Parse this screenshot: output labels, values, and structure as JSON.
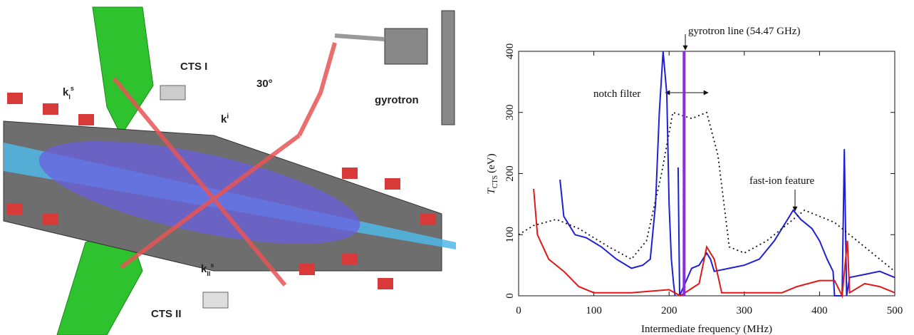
{
  "illustration": {
    "labels": [
      "CTS I",
      "30°",
      "k",
      "i",
      "k",
      "I",
      "s",
      "gyrotron",
      "k",
      "II",
      "s",
      "CTS II"
    ]
  },
  "chart_data": {
    "type": "line",
    "y_label": "T",
    "y_label_sub": "CTS",
    "y_label_unit": "(eV)",
    "x_label": "Intermediate frequency (MHz)",
    "annotations": [
      "gyrotron line (54.47 GHz)",
      "notch filter",
      "fast-ion feature"
    ],
    "gyrotron_line_x": 220,
    "gyrotron_line_color": "#8a2be2",
    "xlim": [
      0,
      500
    ],
    "xticks": [
      0,
      100,
      200,
      300,
      400,
      500
    ],
    "ylim": [
      0,
      400
    ],
    "yticks": [
      0,
      100,
      200,
      300,
      400
    ],
    "series": [
      {
        "color": "#1f1fd6",
        "style": "solid",
        "x": [
          55,
          60,
          75,
          90,
          110,
          130,
          150,
          165,
          175,
          182,
          187,
          192,
          197,
          200,
          203,
          206,
          208,
          210,
          212,
          214,
          230,
          240,
          250,
          255,
          260,
          280,
          300,
          320,
          340,
          360,
          365,
          375,
          390,
          400,
          410,
          418,
          420,
          430,
          433,
          436,
          440,
          460,
          480,
          500
        ],
        "values": [
          190,
          130,
          100,
          95,
          80,
          60,
          45,
          50,
          60,
          150,
          300,
          400,
          330,
          150,
          60,
          20,
          0,
          null,
          210,
          0,
          45,
          50,
          70,
          60,
          40,
          45,
          50,
          60,
          90,
          130,
          140,
          125,
          110,
          90,
          60,
          40,
          0,
          0,
          240,
          0,
          30,
          35,
          40,
          30
        ]
      },
      {
        "color": "#e01818",
        "style": "solid",
        "x": [
          20,
          25,
          40,
          60,
          80,
          100,
          150,
          200,
          215,
          240,
          250,
          260,
          270,
          300,
          350,
          370,
          400,
          420,
          430,
          437,
          440,
          460,
          480,
          500
        ],
        "values": [
          175,
          100,
          60,
          40,
          15,
          5,
          5,
          10,
          0,
          20,
          80,
          60,
          5,
          5,
          5,
          15,
          25,
          25,
          0,
          90,
          5,
          20,
          15,
          5
        ]
      },
      {
        "color": "#111111",
        "style": "dotted",
        "x": [
          0,
          20,
          50,
          80,
          120,
          150,
          170,
          190,
          205,
          230,
          250,
          265,
          280,
          300,
          330,
          360,
          380,
          400,
          420,
          440,
          470,
          500
        ],
        "values": [
          100,
          115,
          125,
          110,
          80,
          60,
          90,
          200,
          300,
          290,
          300,
          230,
          80,
          70,
          90,
          120,
          140,
          130,
          120,
          100,
          70,
          40
        ]
      }
    ]
  }
}
